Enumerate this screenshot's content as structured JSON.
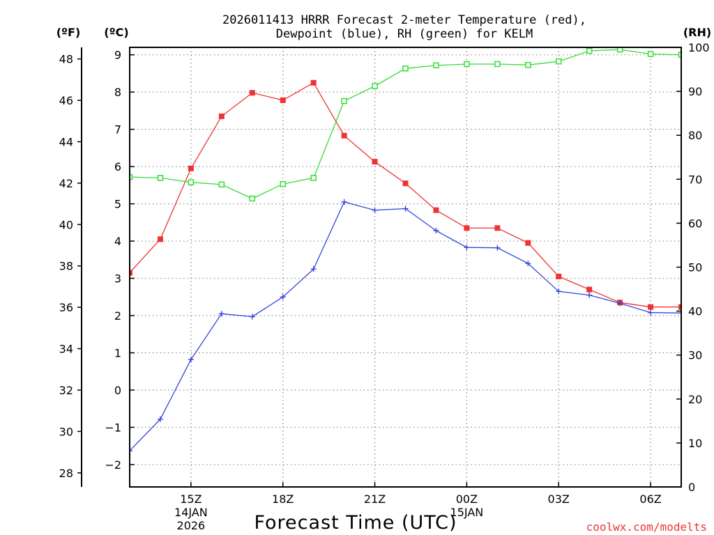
{
  "chart_data": {
    "type": "line",
    "title_lines": [
      "2026011413 HRRR Forecast 2-meter Temperature (red),",
      "Dewpoint (blue), RH (green) for KELM"
    ],
    "xlabel": "Forecast Time (UTC)",
    "credit": "coolwx.com/modelts",
    "unit_labels": {
      "fahrenheit": "(ºF)",
      "celsius": "(ºC)",
      "rh": "(RH)"
    },
    "x_hours": [
      13,
      14,
      15,
      16,
      17,
      18,
      19,
      20,
      21,
      22,
      23,
      24,
      25,
      26,
      27,
      28,
      29,
      30,
      31
    ],
    "xlim": [
      13,
      31
    ],
    "x_ticks": [
      {
        "hour": 15,
        "label": "15Z",
        "date": "14JAN",
        "year": "2026"
      },
      {
        "hour": 18,
        "label": "18Z"
      },
      {
        "hour": 21,
        "label": "21Z"
      },
      {
        "hour": 24,
        "label": "00Z",
        "date": "15JAN"
      },
      {
        "hour": 27,
        "label": "03Z"
      },
      {
        "hour": 30,
        "label": "06Z"
      }
    ],
    "celsius_axis": {
      "range": [
        -2.6,
        9.2
      ],
      "ticks": [
        -2,
        -1,
        0,
        1,
        2,
        3,
        4,
        5,
        6,
        7,
        8,
        9
      ]
    },
    "fahrenheit_axis": {
      "ticks": [
        28,
        30,
        32,
        34,
        36,
        38,
        40,
        42,
        44,
        46,
        48
      ]
    },
    "rh_axis": {
      "range": [
        0,
        100
      ],
      "ticks": [
        0,
        10,
        20,
        30,
        40,
        50,
        60,
        70,
        80,
        90,
        100
      ]
    },
    "series": [
      {
        "name": "Temperature",
        "color": "#ee3333",
        "marker": "filled-square",
        "axis": "celsius",
        "values": [
          3.15,
          4.05,
          5.95,
          7.35,
          7.98,
          7.78,
          8.25,
          6.83,
          6.13,
          5.55,
          4.83,
          4.35,
          4.35,
          3.95,
          3.05,
          2.7,
          2.35,
          2.23,
          2.23
        ]
      },
      {
        "name": "Dewpoint",
        "color": "#3344dd",
        "marker": "plus",
        "axis": "celsius",
        "values": [
          -1.63,
          -0.78,
          0.82,
          2.05,
          1.97,
          2.5,
          3.25,
          5.05,
          4.83,
          4.87,
          4.28,
          3.83,
          3.82,
          3.4,
          2.65,
          2.55,
          2.33,
          2.08,
          2.07
        ]
      },
      {
        "name": "RH",
        "color": "#33dd33",
        "marker": "open-square",
        "axis": "rh",
        "values": [
          70.5,
          70.3,
          69.3,
          68.8,
          65.6,
          68.9,
          70.3,
          87.8,
          91.2,
          95.2,
          95.9,
          96.2,
          96.2,
          96.0,
          96.8,
          99.2,
          99.5,
          98.5,
          98.3
        ]
      }
    ]
  }
}
